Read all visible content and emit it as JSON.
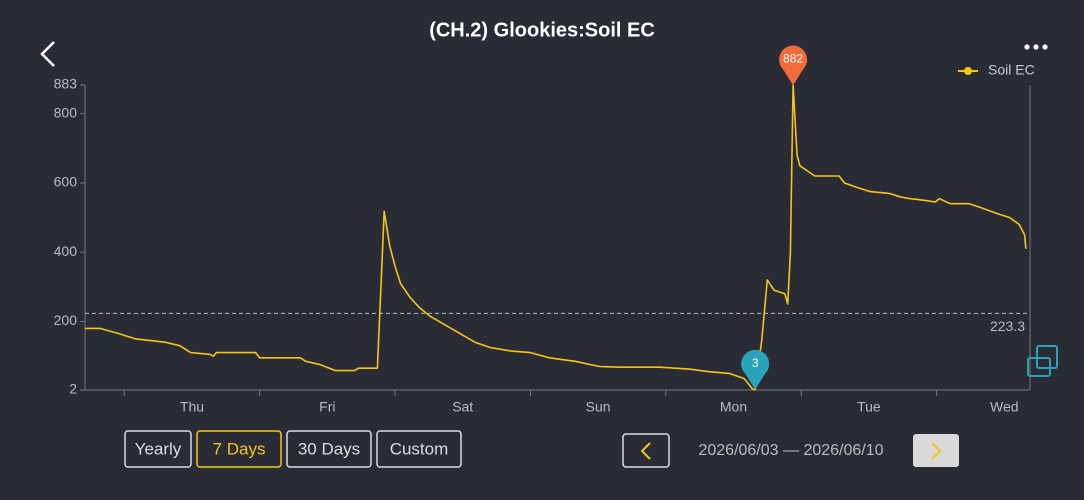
{
  "header": {
    "title": "(CH.2) Glookies:Soil EC"
  },
  "chart_data": {
    "type": "line",
    "series": [
      {
        "name": "Soil EC",
        "color": "#f5c518",
        "x": [
          -0.29,
          -0.18,
          -0.04,
          0.08,
          0.3,
          0.41,
          0.49,
          0.63,
          0.66,
          0.68,
          0.97,
          1.0,
          1.3,
          1.34,
          1.45,
          1.56,
          1.7,
          1.73,
          1.87,
          1.92,
          1.96,
          2.0,
          2.04,
          2.11,
          2.18,
          2.26,
          2.37,
          2.48,
          2.59,
          2.7,
          2.85,
          3.0,
          3.14,
          3.33,
          3.51,
          3.66,
          3.96,
          4.18,
          4.32,
          4.47,
          4.58,
          4.64,
          4.66,
          4.71,
          4.75,
          4.8,
          4.88,
          4.9,
          4.92,
          4.94,
          4.97,
          4.99,
          5.1,
          5.28,
          5.32,
          5.43,
          5.51,
          5.65,
          5.73,
          5.8,
          5.91,
          5.99,
          6.02,
          6.1,
          6.24,
          6.32,
          6.39,
          6.46,
          6.54,
          6.61,
          6.65,
          6.66
        ],
        "values": [
          180,
          180,
          165,
          150,
          140,
          130,
          110,
          105,
          100,
          110,
          110,
          95,
          95,
          85,
          75,
          58,
          58,
          65,
          65,
          518,
          420,
          360,
          310,
          270,
          240,
          215,
          190,
          165,
          140,
          125,
          115,
          110,
          95,
          85,
          70,
          68,
          68,
          62,
          55,
          50,
          35,
          5,
          3,
          150,
          320,
          290,
          280,
          250,
          400,
          882,
          680,
          650,
          620,
          620,
          600,
          585,
          575,
          570,
          560,
          555,
          550,
          545,
          555,
          540,
          540,
          530,
          520,
          510,
          500,
          480,
          450,
          410
        ]
      }
    ],
    "xlim": [
      -0.29,
      6.69
    ],
    "xticks": [
      0,
      1,
      2,
      3,
      4,
      5,
      6
    ],
    "xlabels": [
      {
        "value": 0.5,
        "label": "Thu"
      },
      {
        "value": 1.5,
        "label": "Fri"
      },
      {
        "value": 2.5,
        "label": "Sat"
      },
      {
        "value": 3.5,
        "label": "Sun"
      },
      {
        "value": 4.5,
        "label": "Mon"
      },
      {
        "value": 5.5,
        "label": "Tue"
      },
      {
        "value": 6.5,
        "label": "Wed"
      }
    ],
    "ylim": [
      2,
      883
    ],
    "yticks": [
      2,
      200,
      400,
      600,
      800,
      883
    ],
    "average": 223.3,
    "max": {
      "x": 4.94,
      "value": 882,
      "color": "#f26b3a"
    },
    "min": {
      "x": 4.66,
      "value": 3,
      "color": "#2aa3b8"
    }
  },
  "controls": {
    "ranges": [
      "Yearly",
      "7 Days",
      "30 Days",
      "Custom"
    ],
    "active": 1,
    "date_range": "2026/06/03 — 2026/06/10"
  }
}
